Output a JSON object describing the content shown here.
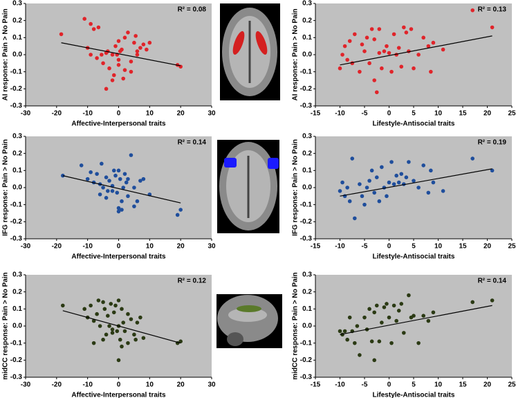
{
  "chart_data": [
    {
      "type": "scatter",
      "xlabel": "Affective-Interpersonal traits",
      "ylabel": "AI response: Pain > No Pain",
      "annotation": "R² = 0.08",
      "color": "#e0242a",
      "x": [
        -18.5,
        -11,
        -9,
        -8,
        -6.5,
        -10,
        -9,
        -7,
        -5.5,
        -5,
        -4,
        -3.5,
        -3,
        -2,
        -1.5,
        -1,
        -0.5,
        0,
        0,
        0.5,
        1,
        1.5,
        2,
        3,
        4,
        5,
        5.5,
        6,
        7,
        8,
        9,
        10,
        -4,
        -2,
        0,
        2,
        4,
        6,
        19,
        20
      ],
      "y": [
        0.12,
        0.21,
        0.18,
        0.15,
        0.16,
        0.04,
        0.0,
        -0.02,
        0.0,
        -0.05,
        0.01,
        0.02,
        -0.08,
        0.0,
        -0.12,
        0.05,
        0.0,
        0.08,
        -0.03,
        0.02,
        0.03,
        -0.14,
        0.1,
        0.13,
        -0.1,
        0.07,
        0.11,
        0.0,
        0.04,
        0.06,
        0.03,
        0.07,
        -0.2,
        -0.15,
        -0.06,
        -0.09,
        -0.04,
        0.02,
        -0.06,
        -0.07
      ],
      "trendline": {
        "x": [
          -18.5,
          20
        ],
        "y": [
          0.07,
          -0.065
        ]
      },
      "xlim": [
        -30,
        30
      ],
      "xticks": [
        -30,
        -20,
        -10,
        0,
        10,
        20,
        30
      ],
      "ylim": [
        -0.3,
        0.3
      ],
      "yticks": [
        0.3,
        0.2,
        0.1,
        {
          "value": 0,
          "label": "0.0"
        },
        -0.1,
        -0.2,
        -0.3
      ]
    },
    {
      "type": "scatter",
      "xlabel": "Lifestyle-Antisocial traits",
      "ylabel": "AI response: Pain > No Pain",
      "annotation": "R² = 0.13",
      "color": "#e0242a",
      "x": [
        -10,
        -9.5,
        -9,
        -8.5,
        -8,
        -7.5,
        -7,
        -6,
        -5.5,
        -5,
        -4.5,
        -4,
        -3.5,
        -3,
        -3,
        -2.5,
        -2,
        -2,
        -1.5,
        -1,
        -0.5,
        0,
        0.5,
        1,
        1.5,
        2,
        2.5,
        3,
        3.5,
        4,
        4.5,
        5,
        6,
        7,
        8,
        8.5,
        9,
        11,
        17,
        21
      ],
      "y": [
        -0.08,
        0.0,
        0.05,
        -0.03,
        0.08,
        -0.05,
        0.12,
        -0.1,
        0.06,
        0.02,
        0.1,
        -0.05,
        0.15,
        0.09,
        -0.15,
        -0.22,
        0.15,
        0.01,
        -0.08,
        0.02,
        0.05,
        0.01,
        -0.1,
        0.12,
        0.0,
        0.04,
        -0.07,
        0.16,
        0.13,
        0.02,
        0.15,
        -0.08,
        0.0,
        0.1,
        0.05,
        -0.1,
        0.07,
        0.03,
        0.26,
        0.16
      ],
      "trendline": {
        "x": [
          -10,
          21
        ],
        "y": [
          -0.06,
          0.11
        ]
      },
      "xlim": [
        -15,
        25
      ],
      "xticks": [
        -15,
        -10,
        -5,
        0,
        5,
        10,
        15,
        20,
        25
      ],
      "ylim": [
        -0.3,
        0.3
      ],
      "yticks": [
        0.3,
        0.2,
        0.1,
        {
          "value": 0,
          "label": "0.0"
        },
        -0.1,
        -0.2,
        -0.3
      ]
    },
    {
      "type": "scatter",
      "xlabel": "Affective-Interpersonal traits",
      "ylabel": "IFG response: Pain > No Pain",
      "annotation": "R² = 0.14",
      "color": "#1f4e9c",
      "x": [
        -18,
        -12,
        -10,
        -9,
        -8,
        -7,
        -6,
        -5.5,
        -5,
        -4,
        -3.5,
        -3,
        -2,
        -1.5,
        -1,
        -0.5,
        0,
        0,
        0.5,
        1,
        1.5,
        2,
        2.5,
        3,
        4,
        5,
        6,
        7,
        8,
        -6,
        -4,
        -2,
        0,
        1,
        3,
        5,
        10,
        19,
        20
      ],
      "y": [
        0.07,
        0.13,
        0.05,
        0.09,
        0.03,
        0.08,
        0.02,
        0.14,
        0.0,
        0.06,
        -0.02,
        0.04,
        0.01,
        0.1,
        0.07,
        -0.03,
        0.1,
        -0.12,
        0.05,
        -0.08,
        0.0,
        0.08,
        0.03,
        0.05,
        0.19,
        0.0,
        -0.08,
        0.04,
        0.05,
        -0.04,
        -0.06,
        -0.02,
        -0.14,
        -0.13,
        -0.05,
        -0.11,
        -0.04,
        -0.16,
        -0.13
      ],
      "trendline": {
        "x": [
          -18,
          20
        ],
        "y": [
          0.07,
          -0.09
        ]
      },
      "xlim": [
        -30,
        30
      ],
      "xticks": [
        -30,
        -20,
        -10,
        0,
        10,
        20,
        30
      ],
      "ylim": [
        -0.3,
        0.3
      ],
      "yticks": [
        0.3,
        0.2,
        0.1,
        {
          "value": 0,
          "label": "0.0"
        },
        -0.1,
        -0.2,
        -0.3
      ]
    },
    {
      "type": "scatter",
      "xlabel": "Lifestyle-Antisocial traits",
      "ylabel": "IFG response: Pain > No Pain",
      "annotation": "R² = 0.19",
      "color": "#1f4e9c",
      "x": [
        -10,
        -9.5,
        -9,
        -8.5,
        -8,
        -7.5,
        -7,
        -6,
        -5.5,
        -5,
        -4.5,
        -4,
        -3.5,
        -3,
        -2.5,
        -2,
        -1.5,
        -1,
        -0.5,
        0,
        0.5,
        1,
        1.5,
        2,
        2.5,
        3,
        3.5,
        4,
        5,
        6,
        7,
        8,
        8.5,
        9,
        11,
        17,
        21
      ],
      "y": [
        -0.02,
        0.03,
        -0.05,
        0.0,
        -0.08,
        0.17,
        -0.18,
        0.02,
        -0.05,
        -0.1,
        0.0,
        0.04,
        0.1,
        -0.03,
        0.06,
        -0.08,
        0.12,
        0.0,
        -0.05,
        0.03,
        0.15,
        0.02,
        0.07,
        0.03,
        0.08,
        0.02,
        0.06,
        0.15,
        0.04,
        0.0,
        0.13,
        -0.03,
        0.1,
        0.03,
        -0.02,
        0.17,
        0.1
      ],
      "trendline": {
        "x": [
          -10,
          21
        ],
        "y": [
          -0.05,
          0.11
        ]
      },
      "xlim": [
        -15,
        25
      ],
      "xticks": [
        -15,
        -10,
        -5,
        0,
        5,
        10,
        15,
        20,
        25
      ],
      "ylim": [
        -0.3,
        0.3
      ],
      "yticks": [
        0.3,
        0.2,
        0.1,
        {
          "value": 0,
          "label": "0.0"
        },
        -0.1,
        -0.2,
        -0.3
      ]
    },
    {
      "type": "scatter",
      "xlabel": "Affective-Interpersonal traits",
      "ylabel": "midCC response: Pain > No Pain",
      "annotation": "R² = 0.12",
      "color": "#2b3a14",
      "x": [
        -18,
        -11,
        -10,
        -9,
        -8,
        -7,
        -6.5,
        -6,
        -5,
        -4.5,
        -4,
        -3.5,
        -3,
        -2.5,
        -2,
        -1.5,
        -1,
        -0.5,
        0,
        0,
        0.5,
        1,
        1.5,
        2,
        3,
        4,
        5,
        5.5,
        6,
        7,
        8,
        -8,
        -5,
        -2,
        0,
        1,
        3,
        19,
        20
      ],
      "y": [
        0.12,
        0.1,
        0.05,
        0.12,
        0.03,
        0.07,
        0.15,
        0.0,
        0.14,
        0.1,
        -0.05,
        0.06,
        0.0,
        0.13,
        -0.02,
        0.08,
        0.12,
        -0.03,
        0.0,
        0.15,
        -0.08,
        0.1,
        0.02,
        -0.03,
        0.07,
        0.04,
        -0.05,
        -0.08,
        0.02,
        0.05,
        -0.07,
        -0.1,
        -0.08,
        -0.04,
        -0.2,
        -0.12,
        -0.1,
        -0.1,
        -0.09
      ],
      "trendline": {
        "x": [
          -18,
          20
        ],
        "y": [
          0.09,
          -0.1
        ]
      },
      "xlim": [
        -30,
        30
      ],
      "xticks": [
        -30,
        -20,
        -10,
        0,
        10,
        20,
        30
      ],
      "ylim": [
        -0.3,
        0.3
      ],
      "yticks": [
        0.3,
        0.2,
        0.1,
        {
          "value": 0,
          "label": "0.0"
        },
        -0.1,
        -0.2,
        -0.3
      ]
    },
    {
      "type": "scatter",
      "xlabel": "Lifestyle-Antisocial traits",
      "ylabel": "midCC response: Pain > No Pain",
      "annotation": "R² = 0.14",
      "color": "#2b3a14",
      "x": [
        -10,
        -9.5,
        -9,
        -8.5,
        -8,
        -7.5,
        -7,
        -6.5,
        -6,
        -5,
        -4.5,
        -4,
        -3.5,
        -3,
        -3,
        -2.5,
        -2,
        -1.5,
        -1,
        -0.5,
        0,
        0.5,
        1,
        1.5,
        2,
        2.5,
        3,
        4,
        4.5,
        5,
        6,
        7,
        8,
        9,
        17,
        21
      ],
      "y": [
        -0.03,
        -0.05,
        -0.03,
        -0.08,
        0.05,
        -0.03,
        -0.1,
        0.0,
        -0.17,
        0.05,
        -0.02,
        0.1,
        -0.09,
        0.08,
        -0.2,
        0.12,
        -0.09,
        0.02,
        0.11,
        0.13,
        0.05,
        -0.1,
        0.12,
        0.03,
        0.09,
        0.13,
        -0.04,
        0.18,
        0.05,
        0.06,
        -0.1,
        0.06,
        0.03,
        0.08,
        0.14,
        0.15
      ],
      "trendline": {
        "x": [
          -10,
          21
        ],
        "y": [
          -0.05,
          0.12
        ]
      },
      "xlim": [
        -15,
        25
      ],
      "xticks": [
        -15,
        -10,
        -5,
        0,
        5,
        10,
        15,
        20,
        25
      ],
      "ylim": [
        -0.3,
        0.3
      ],
      "yticks": [
        0.3,
        0.2,
        0.1,
        {
          "value": 0,
          "label": "0.0"
        },
        -0.1,
        -0.2,
        -0.3
      ]
    }
  ]
}
